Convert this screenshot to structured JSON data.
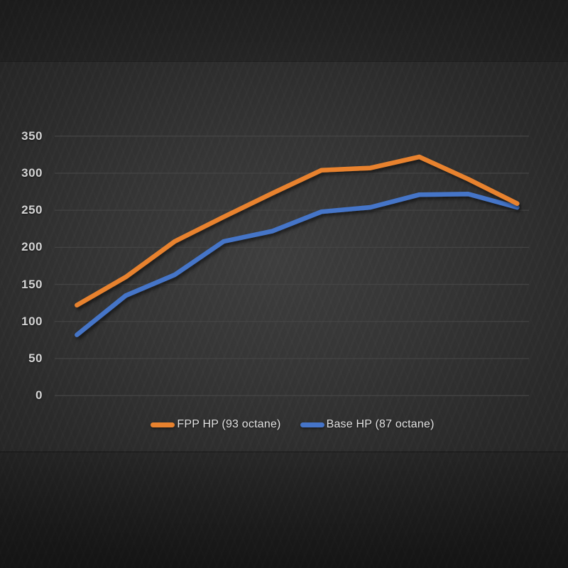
{
  "colors": {
    "background_center": "#3e3e3e",
    "background_edge": "#232323",
    "gridline": "#474747",
    "tick_label": "#d4d4d4",
    "legend_text": "#e2e2e2",
    "series_fpp_orange": "#e8822e",
    "series_base_blue": "#4574c8"
  },
  "chart_data": {
    "type": "line",
    "title": "",
    "xlabel": "",
    "ylabel": "",
    "ylim": [
      0,
      350
    ],
    "yticks": [
      350,
      300,
      250,
      200,
      150,
      100,
      50,
      0
    ],
    "x_tick_labels_visible": false,
    "point_count": 10,
    "grid": "horizontal",
    "legend_position": "bottom",
    "series": [
      {
        "name": "FPP HP (93 octane)",
        "color": "#e8822e",
        "values": [
          122,
          160,
          208,
          241,
          273,
          304,
          307,
          322,
          292,
          259
        ]
      },
      {
        "name": "Base HP (87 octane)",
        "color": "#4574c8",
        "values": [
          82,
          135,
          163,
          208,
          222,
          248,
          254,
          271,
          272,
          254
        ]
      }
    ]
  },
  "legend": {
    "items": [
      {
        "label": "FPP HP (93 octane)",
        "color": "#e8822e"
      },
      {
        "label": "Base HP (87 octane)",
        "color": "#4574c8"
      }
    ]
  }
}
